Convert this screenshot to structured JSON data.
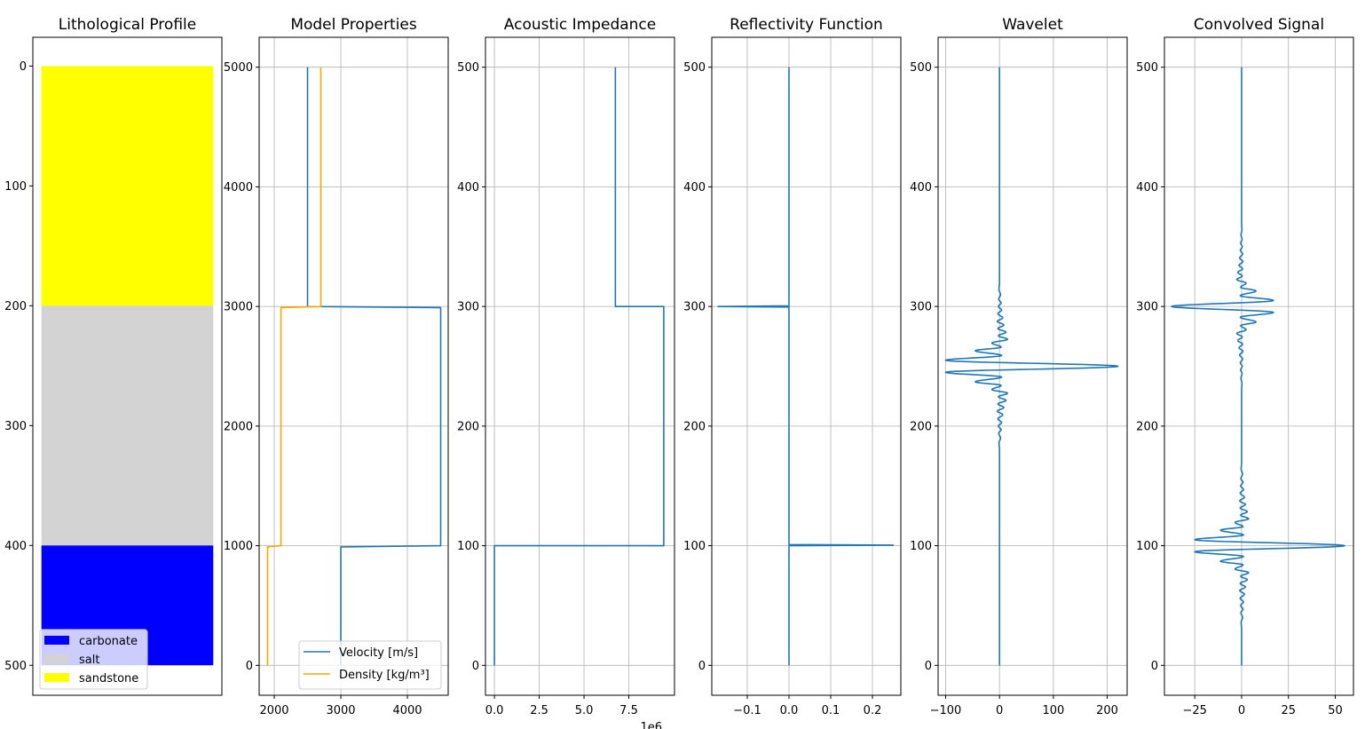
{
  "chart_data": [
    {
      "type": "bar",
      "title": "Lithological Profile",
      "ylim": [
        525,
        -24
      ],
      "xlim": [
        -0.05,
        1.05
      ],
      "yticks": [
        0,
        100,
        200,
        300,
        400,
        500
      ],
      "xticks": [],
      "grid": false,
      "legend": {
        "placement": "lower-left",
        "entries": [
          "carbonate",
          "salt",
          "sandstone"
        ]
      },
      "layers": [
        {
          "name": "sandstone",
          "top": 0,
          "bottom": 200,
          "color": "#ffff00"
        },
        {
          "name": "salt",
          "top": 200,
          "bottom": 400,
          "color": "#d3d3d3"
        },
        {
          "name": "carbonate",
          "top": 400,
          "bottom": 500,
          "color": "#0000ff"
        }
      ]
    },
    {
      "type": "line",
      "title": "Model Properties",
      "xlim": [
        1773,
        4613
      ],
      "ylim": [
        -250,
        5250
      ],
      "xticks": [
        2000,
        3000,
        4000
      ],
      "yticks": [
        0,
        1000,
        2000,
        3000,
        4000,
        5000
      ],
      "grid": true,
      "legend": {
        "placement": "lower-right"
      },
      "series": [
        {
          "name": "Velocity [m/s]",
          "color": "#1f77b4",
          "points": [
            [
              3000,
              0
            ],
            [
              3000,
              990
            ],
            [
              4500,
              1000
            ],
            [
              4500,
              2990
            ],
            [
              2500,
              3000
            ],
            [
              2500,
              5000
            ]
          ]
        },
        {
          "name": "Density [kg/m³]",
          "color": "#ffa500",
          "points": [
            [
              1900,
              0
            ],
            [
              1900,
              990
            ],
            [
              2100,
              1000
            ],
            [
              2100,
              2990
            ],
            [
              2700,
              3000
            ],
            [
              2700,
              5000
            ]
          ]
        }
      ]
    },
    {
      "type": "line",
      "title": "Acoustic Impedance",
      "xlim": [
        -500000,
        10050000
      ],
      "ylim": [
        -25,
        525
      ],
      "xticks": [
        0,
        2500000,
        5000000,
        7500000
      ],
      "xticklabels": [
        "0.0",
        "2.5",
        "5.0",
        "7.5"
      ],
      "xoffset_label": "1e6",
      "yticks": [
        0,
        100,
        200,
        300,
        400,
        500
      ],
      "grid": true,
      "series": [
        {
          "color": "#1f77b4",
          "points": [
            [
              0,
              0
            ],
            [
              0,
              100
            ],
            [
              9450000,
              100
            ],
            [
              9450000,
              300
            ],
            [
              6750000,
              300
            ],
            [
              6750000,
              500
            ]
          ]
        }
      ]
    },
    {
      "type": "line",
      "title": "Reflectivity Function",
      "xlim": [
        -0.185,
        0.268
      ],
      "ylim": [
        -25,
        525
      ],
      "xticks": [
        -0.1,
        0.0,
        0.1,
        0.2
      ],
      "xticklabels": [
        "−0.1",
        "0.0",
        "0.1",
        "0.2"
      ],
      "yticks": [
        0,
        100,
        200,
        300,
        400,
        500
      ],
      "grid": true,
      "series": [
        {
          "color": "#1f77b4",
          "points": [
            [
              0,
              0
            ],
            [
              0,
              100
            ],
            [
              0.25,
              100.5
            ],
            [
              0,
              101
            ],
            [
              0,
              299.5
            ],
            [
              -0.17,
              300
            ],
            [
              0,
              300.5
            ],
            [
              0,
              500
            ]
          ]
        }
      ]
    },
    {
      "type": "line",
      "title": "Wavelet",
      "xlim": [
        -114,
        237
      ],
      "ylim": [
        -25,
        525
      ],
      "xticks": [
        -100,
        0,
        100,
        200
      ],
      "xticklabels": [
        "−100",
        "0",
        "100",
        "200"
      ],
      "yticks": [
        0,
        100,
        200,
        300,
        400,
        500
      ],
      "grid": true,
      "wavelet": {
        "center": 250,
        "extrema_offset_amplitude": [
          [
            0,
            220
          ],
          [
            5,
            -100
          ],
          [
            9,
            4
          ],
          [
            13,
            -45
          ],
          [
            16,
            3
          ],
          [
            19.5,
            -14
          ],
          [
            22.5,
            15
          ],
          [
            25.5,
            -2
          ],
          [
            28.5,
            12
          ],
          [
            31.5,
            -3
          ],
          [
            34.5,
            8
          ],
          [
            37.5,
            -4
          ],
          [
            40.5,
            6
          ],
          [
            44,
            -3
          ],
          [
            47,
            4
          ],
          [
            50,
            -2
          ],
          [
            53,
            3
          ],
          [
            56,
            -1.5
          ],
          [
            60,
            2
          ],
          [
            64,
            -1
          ],
          [
            70,
            0
          ],
          [
            250,
            0
          ]
        ]
      },
      "color": "#1f77b4"
    },
    {
      "type": "line",
      "title": "Convolved Signal",
      "xlim": [
        -41.2,
        59.7
      ],
      "ylim": [
        -25,
        525
      ],
      "xticks": [
        -25,
        0,
        25,
        50
      ],
      "xticklabels": [
        "−25",
        "0",
        "25",
        "50"
      ],
      "yticks": [
        0,
        100,
        200,
        300,
        400,
        500
      ],
      "grid": true,
      "events": [
        {
          "depth": 100,
          "reflectivity": 0.25
        },
        {
          "depth": 300,
          "reflectivity": -0.17
        }
      ],
      "color": "#1f77b4"
    }
  ]
}
